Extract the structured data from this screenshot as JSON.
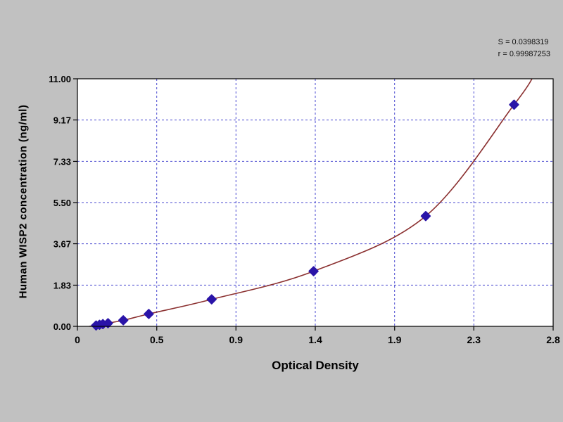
{
  "chart_data": {
    "type": "scatter",
    "title": "",
    "xlabel": "Optical Density",
    "ylabel": "Human WISP2  concentration (ng/ml)",
    "x_ticks": [
      "0",
      "0.5",
      "0.9",
      "1.4",
      "1.9",
      "2.3",
      "2.8"
    ],
    "x_tick_values": [
      0,
      0.467,
      0.933,
      1.4,
      1.867,
      2.333,
      2.8
    ],
    "y_ticks": [
      "0.00",
      "1.83",
      "3.67",
      "5.50",
      "7.33",
      "9.17",
      "11.00"
    ],
    "y_tick_values": [
      0,
      1.83,
      3.67,
      5.5,
      7.33,
      9.17,
      11.0
    ],
    "xlim": [
      0,
      2.8
    ],
    "ylim": [
      0,
      11
    ],
    "grid": "dashed",
    "legend": "none",
    "points": [
      [
        0.11,
        0.04
      ],
      [
        0.13,
        0.07
      ],
      [
        0.15,
        0.1
      ],
      [
        0.18,
        0.14
      ],
      [
        0.27,
        0.27
      ],
      [
        0.42,
        0.55
      ],
      [
        0.79,
        1.2
      ],
      [
        1.39,
        2.45
      ],
      [
        2.05,
        4.9
      ],
      [
        2.57,
        9.85
      ]
    ],
    "curve_start": [
      0.07,
      0.0
    ],
    "curve_end": [
      2.68,
      11.05
    ],
    "annotations": [
      "S = 0.0398319",
      "r = 0.99987253"
    ],
    "colors": {
      "point": "#2a14a8",
      "curve": "#8b3030",
      "grid": "#4a4ad0",
      "plot_bg": "#ffffff",
      "page_bg": "#c1c1c1",
      "axis": "#000000"
    }
  }
}
